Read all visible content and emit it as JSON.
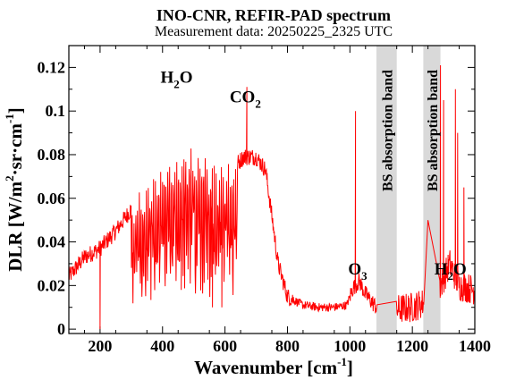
{
  "chart_data": {
    "type": "line",
    "title": "INO-CNR, REFIR-PAD spectrum",
    "subtitle": "Measurement data: 20250225_2325 UTC",
    "xlabel": {
      "main": "Wavenumber [cm",
      "sup": "-1",
      "tail": "]"
    },
    "ylabel": {
      "p1": "DLR [W/m",
      "sup1": "2",
      "p2": "·sr·cm",
      "sup2": "-1",
      "p3": "]"
    },
    "xlim": [
      100,
      1400
    ],
    "ylim": [
      -0.002,
      0.13
    ],
    "xticks": [
      200,
      400,
      600,
      800,
      1000,
      1200,
      1400
    ],
    "yticks": [
      0,
      0.02,
      0.04,
      0.06,
      0.08,
      0.1,
      0.12
    ],
    "ytick_labels": [
      "0",
      "0.02",
      "0.04",
      "0.06",
      "0.08",
      "0.1",
      "0.12"
    ],
    "line_color": "#ff0000",
    "shaded_bands": [
      {
        "x": [
          1085,
          1150
        ],
        "label": "BS absorption band",
        "color": "#d9d9d9"
      },
      {
        "x": [
          1235,
          1290
        ],
        "label": "BS absorption band",
        "color": "#d9d9d9"
      }
    ],
    "annotations": [
      {
        "base": "H",
        "sub": "2",
        "tail": "O",
        "x": 445,
        "y": 0.113
      },
      {
        "base": "CO",
        "sub": "2",
        "tail": "",
        "x": 665,
        "y": 0.104
      },
      {
        "base": "O",
        "sub": "3",
        "tail": "",
        "x": 1025,
        "y": 0.025
      },
      {
        "base": "H",
        "sub": "2",
        "tail": "O",
        "x": 1322,
        "y": 0.025
      }
    ],
    "envelope": [
      [
        100,
        0.024
      ],
      [
        150,
        0.033
      ],
      [
        200,
        0.037
      ],
      [
        250,
        0.045
      ],
      [
        300,
        0.055
      ],
      [
        350,
        0.066
      ],
      [
        400,
        0.074
      ],
      [
        450,
        0.079
      ],
      [
        500,
        0.081
      ],
      [
        550,
        0.078
      ],
      [
        600,
        0.072
      ],
      [
        640,
        0.076
      ],
      [
        660,
        0.079
      ],
      [
        700,
        0.079
      ],
      [
        730,
        0.073
      ],
      [
        750,
        0.052
      ],
      [
        770,
        0.03
      ],
      [
        800,
        0.015
      ],
      [
        850,
        0.011
      ],
      [
        900,
        0.01
      ],
      [
        950,
        0.01
      ],
      [
        990,
        0.011
      ],
      [
        1010,
        0.019
      ],
      [
        1030,
        0.022
      ],
      [
        1050,
        0.016
      ],
      [
        1085,
        0.01
      ],
      [
        1150,
        0.009
      ],
      [
        1200,
        0.01
      ],
      [
        1235,
        0.012
      ],
      [
        1290,
        0.02
      ],
      [
        1320,
        0.03
      ],
      [
        1350,
        0.02
      ],
      [
        1400,
        0.018
      ]
    ],
    "dips": [
      [
        460,
        0.018
      ],
      [
        560,
        0.01
      ],
      [
        590,
        0.01
      ],
      [
        200,
        0.0
      ]
    ],
    "spikes": [
      [
        670,
        0.111
      ],
      [
        1018,
        0.1
      ],
      [
        1250,
        0.05
      ],
      [
        1290,
        0.121
      ],
      [
        1300,
        0.105
      ],
      [
        1338,
        0.11
      ],
      [
        1345,
        0.09
      ],
      [
        1365,
        0.065
      ]
    ]
  }
}
